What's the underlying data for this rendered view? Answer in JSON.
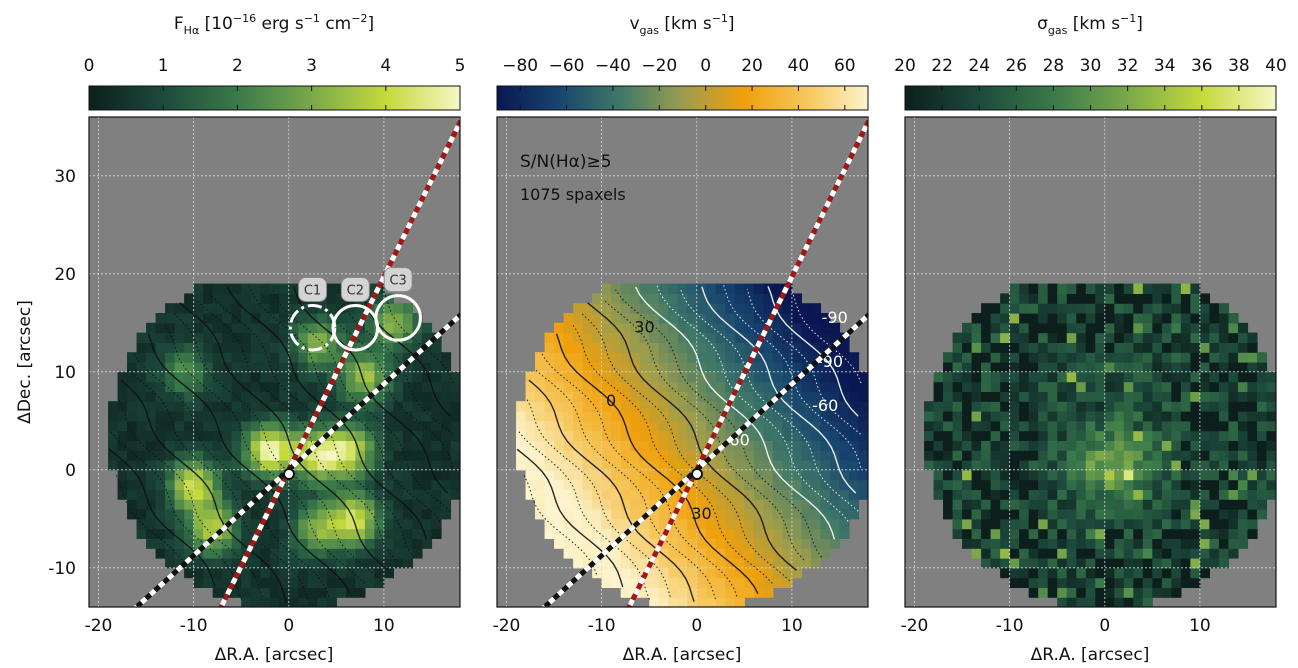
{
  "figure": {
    "shared_x_ticks": [
      "-20",
      "-10",
      "0",
      "10"
    ],
    "shared_y_ticks": [
      "30",
      "20",
      "10",
      "0",
      "-10"
    ],
    "xlabel": "ΔR.A. [arcsec]",
    "ylabel": "ΔDec. [arcsec]"
  },
  "chart_data": [
    {
      "type": "heatmap",
      "quantity": "H-alpha flux",
      "title": "F",
      "title_sub": "Hα",
      "title_units": " [10",
      "title_exp": "−16",
      "title_units2": " erg s",
      "title_exp2": "−1",
      "title_units3": " cm",
      "title_exp3": "−2",
      "title_units4": "]",
      "colorbar": {
        "min": 0,
        "max": 5,
        "ticks": [
          "0",
          "1",
          "2",
          "3",
          "4",
          "5"
        ],
        "colors": [
          "#0c1f1c",
          "#1d4a3c",
          "#3a7a4a",
          "#7aa84a",
          "#c4d93a",
          "#f6f7c4"
        ]
      },
      "xlabel": "ΔR.A. [arcsec]",
      "ylabel": "ΔDec. [arcsec]",
      "xlim": [
        -21,
        18
      ],
      "ylim": [
        -14,
        36
      ],
      "x_ticks": [
        -20,
        -10,
        0,
        10
      ],
      "y_ticks": [
        -10,
        0,
        10,
        20,
        30
      ],
      "grid": true,
      "contours": "isovelocity lines (black solid / dotted)",
      "position_angle_lines": [
        {
          "style": "red-white dashed",
          "through": [
            0,
            0
          ],
          "slope": 1.97
        },
        {
          "style": "black-white dashed",
          "through": [
            0,
            0
          ],
          "slope": 0.875
        }
      ],
      "center_marker": {
        "x": 0,
        "y": 0
      },
      "apertures": [
        {
          "label": "C1",
          "x": 2.5,
          "y": 14.5,
          "r_arcsec": 3
        },
        {
          "label": "C2",
          "x": 7,
          "y": 14.5,
          "r_arcsec": 3
        },
        {
          "label": "C3",
          "x": 11.5,
          "y": 15.5,
          "r_arcsec": 3
        }
      ],
      "peaks": [
        {
          "x": -2,
          "y": 2,
          "value": 4.8
        },
        {
          "x": 3,
          "y": 1.5,
          "value": 4.2
        },
        {
          "x": -10,
          "y": -1.5,
          "value": 4.0
        },
        {
          "x": 6.5,
          "y": 2,
          "value": 3.8
        },
        {
          "x": 7,
          "y": -5,
          "value": 4.0
        },
        {
          "x": -8,
          "y": -6,
          "value": 3.6
        },
        {
          "x": 3,
          "y": -6,
          "value": 3.0
        },
        {
          "x": 8,
          "y": 9.5,
          "value": 3.4
        },
        {
          "x": 3,
          "y": 13,
          "value": 3.0
        },
        {
          "x": 11,
          "y": 15,
          "value": 3.2
        },
        {
          "x": -11,
          "y": 10,
          "value": 2.2
        }
      ]
    },
    {
      "type": "heatmap",
      "quantity": "gas velocity",
      "title": "v",
      "title_sub": "gas",
      "title_units": " [km s",
      "title_exp": "−1",
      "title_units2": "]",
      "colorbar": {
        "min": -90,
        "max": 70,
        "ticks": [
          "−80",
          "−60",
          "−40",
          "−20",
          "0",
          "20",
          "40",
          "60"
        ],
        "tick_values": [
          -80,
          -60,
          -40,
          -20,
          0,
          20,
          40,
          60
        ],
        "colors": [
          "#0a1752",
          "#17456e",
          "#3f7868",
          "#9b9d4e",
          "#f0a00c",
          "#f6c65a",
          "#fdf3cc"
        ]
      },
      "annotation": {
        "line1": "S/N(Hα)≥5",
        "line2": "1075 spaxels"
      },
      "xlabel": "ΔR.A. [arcsec]",
      "xlim": [
        -21,
        18
      ],
      "ylim": [
        -14,
        36
      ],
      "x_ticks": [
        -20,
        -10,
        0,
        10
      ],
      "grid": true,
      "contour_labels": [
        "30",
        "0",
        "-90",
        "-90",
        "-60",
        "60",
        "30"
      ],
      "gradient": {
        "receding_side": "south-west",
        "approaching_side": "north-east",
        "v_min": -90,
        "v_max": 70
      }
    },
    {
      "type": "heatmap",
      "quantity": "gas velocity dispersion",
      "title": "σ",
      "title_sub": "gas",
      "title_units": " [km s",
      "title_exp": "−1",
      "title_units2": "]",
      "colorbar": {
        "min": 20,
        "max": 40,
        "ticks": [
          "20",
          "22",
          "24",
          "26",
          "28",
          "30",
          "32",
          "34",
          "36",
          "38",
          "40"
        ],
        "colors": [
          "#0c1f1c",
          "#1d4a3c",
          "#3a7a4a",
          "#7aa84a",
          "#c4d93a",
          "#f6f7c4"
        ]
      },
      "xlabel": "ΔR.A. [arcsec]",
      "xlim": [
        -21,
        18
      ],
      "ylim": [
        -14,
        36
      ],
      "x_ticks": [
        -20,
        -10,
        0,
        10
      ],
      "grid": true,
      "peaks": [
        {
          "x": 1,
          "y": 0.5,
          "value": 33
        }
      ]
    }
  ]
}
